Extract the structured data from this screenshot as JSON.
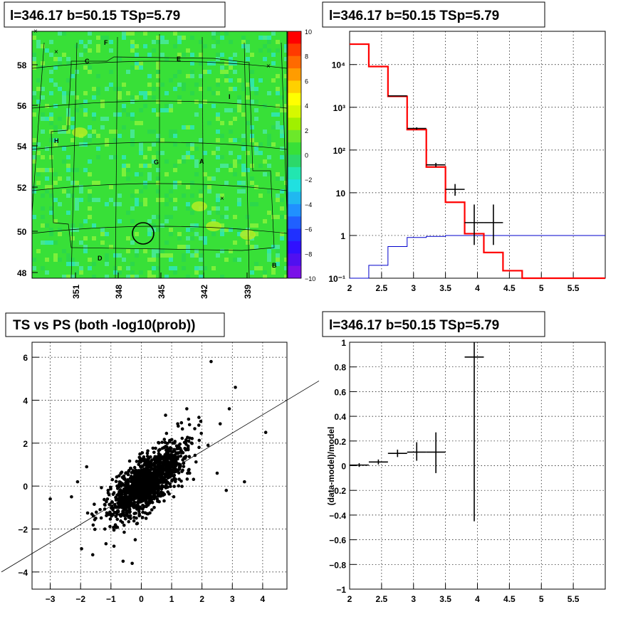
{
  "colors": {
    "grid": "#000000",
    "model": "#ff0000",
    "background_model": "#0000cc",
    "data": "#000000"
  },
  "chart_data": [
    {
      "type": "heatmap",
      "title": "l=346.17 b=50.15 TSp=5.79",
      "y_ticks": [
        "48",
        "50",
        "52",
        "54",
        "56",
        "58"
      ],
      "x_ticks": [
        "351",
        "348",
        "345",
        "342",
        "339"
      ],
      "colorbar": {
        "min": -10,
        "max": 10,
        "ticks": [
          "10",
          "8",
          "6",
          "4",
          "2",
          "0",
          "−2",
          "−4",
          "−6",
          "−8",
          "−10"
        ]
      },
      "region_labels": [
        {
          "text": "F"
        },
        {
          "text": "C"
        },
        {
          "text": "E"
        },
        {
          "text": "I"
        },
        {
          "text": "H"
        },
        {
          "text": "G"
        },
        {
          "text": "A"
        },
        {
          "text": "D"
        },
        {
          "text": "B"
        }
      ],
      "source": {
        "l": 346.17,
        "b": 50.15
      }
    },
    {
      "type": "line",
      "title": "l=346.17 b=50.15 TSp=5.79",
      "xlim": [
        2,
        6
      ],
      "ylog": true,
      "ylim": [
        0.1,
        60000
      ],
      "x_ticks": [
        "2",
        "2.5",
        "3",
        "3.5",
        "4",
        "4.5",
        "5",
        "5.5"
      ],
      "y_ticks": [
        "10⁻¹",
        "1",
        "10",
        "10²",
        "10³",
        "10⁴"
      ],
      "grid": true,
      "model_steps": {
        "edges": [
          2.0,
          2.3,
          2.6,
          2.9,
          3.2,
          3.5,
          3.8,
          4.1,
          4.4,
          4.7,
          6.0
        ],
        "values": [
          30000,
          9000,
          1800,
          300,
          40,
          6,
          1.1,
          0.4,
          0.15,
          0.1
        ]
      },
      "background_steps": {
        "edges": [
          2.0,
          2.3,
          2.6,
          2.9,
          3.2,
          3.5,
          3.8,
          4.1,
          6.0
        ],
        "values": [
          0.05,
          0.2,
          0.55,
          0.9,
          0.95,
          1.0,
          1.0,
          1.0
        ]
      },
      "data_points": [
        {
          "x": 2.75,
          "y": 1850,
          "xerr": 0.15,
          "ylo": 1800,
          "yhi": 1900
        },
        {
          "x": 3.05,
          "y": 320,
          "xerr": 0.15,
          "ylo": 300,
          "yhi": 340
        },
        {
          "x": 3.35,
          "y": 45,
          "xerr": 0.15,
          "ylo": 40,
          "yhi": 50
        },
        {
          "x": 3.65,
          "y": 12,
          "xerr": 0.15,
          "ylo": 8.5,
          "yhi": 16
        },
        {
          "x": 3.95,
          "y": 2.0,
          "xerr": 0.15,
          "ylo": 0.6,
          "yhi": 5.3
        },
        {
          "x": 4.25,
          "y": 2.0,
          "xerr": 0.15,
          "ylo": 0.6,
          "yhi": 5.3
        }
      ]
    },
    {
      "type": "scatter",
      "title": "TS vs PS (both -log10(prob))",
      "xlim": [
        -3.6,
        4.8
      ],
      "ylim": [
        -4.8,
        6.7
      ],
      "x_ticks": [
        "−3",
        "−2",
        "−1",
        "0",
        "1",
        "2",
        "3",
        "4"
      ],
      "y_ticks": [
        "−4",
        "−2",
        "0",
        "2",
        "4",
        "6"
      ],
      "grid": true,
      "fit_line": {
        "slope": 1.0,
        "intercept": 0.0
      },
      "points": [
        [
          4.1,
          2.5
        ],
        [
          2.3,
          5.8
        ],
        [
          3.1,
          4.6
        ],
        [
          2.9,
          3.6
        ],
        [
          3.4,
          0.2
        ],
        [
          2.8,
          -0.2
        ],
        [
          -1.6,
          -3.2
        ],
        [
          -3.0,
          -0.6
        ],
        [
          -1.8,
          0.9
        ],
        [
          -0.9,
          -2.8
        ],
        [
          -0.6,
          -3.5
        ],
        [
          -0.3,
          -3.6
        ],
        [
          0.8,
          3.3
        ],
        [
          1.5,
          3.6
        ],
        [
          1.9,
          3.2
        ],
        [
          2.6,
          2.9
        ],
        [
          -2.3,
          -0.5
        ],
        [
          -2.1,
          0.2
        ],
        [
          -1.5,
          -1.5
        ],
        [
          -1.2,
          -2.0
        ],
        [
          1.2,
          2.9
        ],
        [
          2.2,
          1.9
        ],
        [
          2.5,
          0.6
        ],
        [
          -0.2,
          -2.5
        ]
      ]
    },
    {
      "type": "line",
      "title": "l=346.17 b=50.15 TSp=5.79",
      "ylabel": "(data-model)/model",
      "xlim": [
        2,
        6
      ],
      "ylim": [
        -1,
        1
      ],
      "x_ticks": [
        "2",
        "2.5",
        "3",
        "3.5",
        "4",
        "4.5",
        "5",
        "5.5"
      ],
      "y_ticks": [
        "1",
        "0.8",
        "0.6",
        "0.4",
        "0.2",
        "0",
        "−0.2",
        "−0.4",
        "−0.6",
        "−0.8",
        "−1"
      ],
      "grid": true,
      "residuals": [
        {
          "x": 2.15,
          "y": 0.005,
          "xerr": 0.15,
          "ylo": -0.01,
          "yhi": 0.02
        },
        {
          "x": 2.45,
          "y": 0.03,
          "xerr": 0.15,
          "ylo": 0.01,
          "yhi": 0.05
        },
        {
          "x": 2.75,
          "y": 0.1,
          "xerr": 0.15,
          "ylo": 0.07,
          "yhi": 0.13
        },
        {
          "x": 3.05,
          "y": 0.11,
          "xerr": 0.15,
          "ylo": 0.04,
          "yhi": 0.19
        },
        {
          "x": 3.35,
          "y": 0.11,
          "xerr": 0.15,
          "ylo": -0.06,
          "yhi": 0.27
        },
        {
          "x": 3.95,
          "y": 0.88,
          "xerr": 0.15,
          "ylo": -0.45,
          "yhi": 2.0
        }
      ]
    }
  ]
}
